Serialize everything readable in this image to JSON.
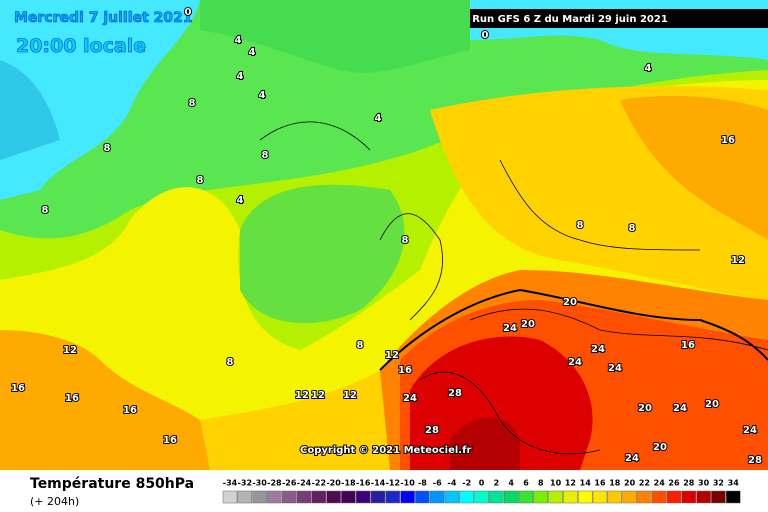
{
  "header": {
    "valid_date": "Mercredi 7 juillet 2021",
    "local_time": "20:00 locale",
    "run": "Run GFS 6 Z du Mardi 29 juin 2021",
    "copyright": "Copyright © 2021 Meteociel.fr"
  },
  "legend": {
    "title": "Température 850hPa",
    "lead": "(+ 204h)",
    "ticks": [
      -34,
      -32,
      -30,
      -28,
      -26,
      -24,
      -22,
      -20,
      -18,
      -16,
      -14,
      -12,
      -10,
      -8,
      -6,
      -4,
      -2,
      0,
      2,
      4,
      6,
      8,
      10,
      12,
      14,
      16,
      18,
      20,
      22,
      24,
      26,
      28,
      30,
      32,
      34
    ],
    "colors": [
      "#d2d2d2",
      "#b4b4b4",
      "#969696",
      "#a07aa0",
      "#8c5a8c",
      "#783c78",
      "#641e64",
      "#500a50",
      "#46005a",
      "#3c0078",
      "#2a1ea0",
      "#1e28c8",
      "#0000ff",
      "#0050ff",
      "#0096ff",
      "#00c8ff",
      "#00ffff",
      "#00ffc8",
      "#00e696",
      "#00dc64",
      "#32e632",
      "#78f000",
      "#b4f000",
      "#e6f000",
      "#ffff00",
      "#ffe600",
      "#ffc800",
      "#ffaa00",
      "#ff8200",
      "#ff5000",
      "#ff1e00",
      "#dc0000",
      "#b40000",
      "#780000",
      "#000000"
    ]
  },
  "contour_labels": [
    0,
    0,
    4,
    4,
    4,
    4,
    4,
    4,
    4,
    8,
    8,
    8,
    8,
    8,
    8,
    8,
    8,
    8,
    8,
    12,
    12,
    12,
    12,
    12,
    12,
    16,
    16,
    16,
    16,
    16,
    16,
    16,
    20,
    20,
    20,
    20,
    20,
    24,
    24,
    24,
    24,
    24,
    24,
    24,
    24,
    28,
    28,
    28
  ]
}
